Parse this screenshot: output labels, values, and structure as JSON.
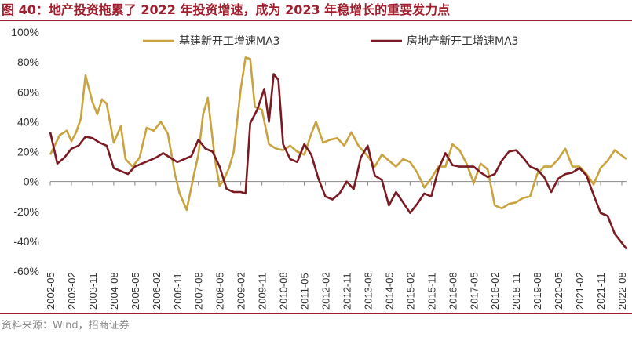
{
  "title": "图 40：地产投资拖累了 2022 年投资增速，成为 2023 年稳增长的重要发力点",
  "source": "资料来源：Wind，招商证券",
  "colors": {
    "title": "#a01e2d",
    "series1": "#c9a33f",
    "series2": "#7a1a22"
  },
  "chart_data": {
    "type": "line",
    "title": "图 40：地产投资拖累了 2022 年投资增速，成为 2023 年稳增长的重要发力点",
    "xlabel": "",
    "ylabel": "",
    "ylim": [
      -0.6,
      1.0
    ],
    "yticks": [
      "100%",
      "80%",
      "60%",
      "40%",
      "20%",
      "0%",
      "-20%",
      "-40%",
      "-60%"
    ],
    "legend_position": "top",
    "categories": [
      "2002-05",
      "2003-02",
      "2003-11",
      "2004-08",
      "2005-05",
      "2006-02",
      "2006-11",
      "2007-08",
      "2008-05",
      "2009-02",
      "2009-11",
      "2010-08",
      "2011-05",
      "2012-02",
      "2012-11",
      "2013-08",
      "2014-05",
      "2015-02",
      "2015-11",
      "2016-08",
      "2017-05",
      "2018-02",
      "2018-11",
      "2019-08",
      "2020-05",
      "2021-02",
      "2021-11",
      "2022-08"
    ],
    "x_start": [
      2002,
      5
    ],
    "x_end": [
      2022,
      10
    ],
    "series": [
      {
        "name": "基建新开工增速MA3",
        "color": "#c9a33f",
        "points": [
          [
            [
              2002,
              5
            ],
            0.18
          ],
          [
            [
              2002,
              9
            ],
            0.31
          ],
          [
            [
              2002,
              12
            ],
            0.34
          ],
          [
            [
              2003,
              2
            ],
            0.27
          ],
          [
            [
              2003,
              4
            ],
            0.33
          ],
          [
            [
              2003,
              6
            ],
            0.42
          ],
          [
            [
              2003,
              8
            ],
            0.71
          ],
          [
            [
              2003,
              11
            ],
            0.53
          ],
          [
            [
              2004,
              1
            ],
            0.45
          ],
          [
            [
              2004,
              3
            ],
            0.55
          ],
          [
            [
              2004,
              5
            ],
            0.52
          ],
          [
            [
              2004,
              8
            ],
            0.26
          ],
          [
            [
              2004,
              11
            ],
            0.37
          ],
          [
            [
              2005,
              1
            ],
            0.15
          ],
          [
            [
              2005,
              4
            ],
            0.1
          ],
          [
            [
              2005,
              7
            ],
            0.16
          ],
          [
            [
              2005,
              10
            ],
            0.36
          ],
          [
            [
              2006,
              1
            ],
            0.34
          ],
          [
            [
              2006,
              4
            ],
            0.4
          ],
          [
            [
              2006,
              7
            ],
            0.32
          ],
          [
            [
              2006,
              10
            ],
            0.05
          ],
          [
            [
              2006,
              12
            ],
            -0.08
          ],
          [
            [
              2007,
              3
            ],
            -0.19
          ],
          [
            [
              2007,
              6
            ],
            0.04
          ],
          [
            [
              2007,
              8
            ],
            0.18
          ],
          [
            [
              2007,
              10
            ],
            0.45
          ],
          [
            [
              2007,
              12
            ],
            0.56
          ],
          [
            [
              2008,
              3
            ],
            0.15
          ],
          [
            [
              2008,
              5
            ],
            -0.03
          ],
          [
            [
              2008,
              7
            ],
            0.02
          ],
          [
            [
              2008,
              9
            ],
            0.09
          ],
          [
            [
              2008,
              11
            ],
            0.2
          ],
          [
            [
              2009,
              2
            ],
            0.62
          ],
          [
            [
              2009,
              4
            ],
            0.83
          ],
          [
            [
              2009,
              6
            ],
            0.82
          ],
          [
            [
              2009,
              8
            ],
            0.5
          ],
          [
            [
              2009,
              11
            ],
            0.48
          ],
          [
            [
              2010,
              2
            ],
            0.25
          ],
          [
            [
              2010,
              5
            ],
            0.22
          ],
          [
            [
              2010,
              8
            ],
            0.21
          ],
          [
            [
              2010,
              11
            ],
            0.24
          ],
          [
            [
              2011,
              2
            ],
            0.2
          ],
          [
            [
              2011,
              5
            ],
            0.18
          ],
          [
            [
              2011,
              8
            ],
            0.32
          ],
          [
            [
              2011,
              10
            ],
            0.4
          ],
          [
            [
              2012,
              1
            ],
            0.26
          ],
          [
            [
              2012,
              4
            ],
            0.28
          ],
          [
            [
              2012,
              7
            ],
            0.29
          ],
          [
            [
              2012,
              10
            ],
            0.24
          ],
          [
            [
              2013,
              1
            ],
            0.33
          ],
          [
            [
              2013,
              4
            ],
            0.24
          ],
          [
            [
              2013,
              8
            ],
            0.17
          ],
          [
            [
              2013,
              11
            ],
            0.1
          ],
          [
            [
              2014,
              2
            ],
            0.18
          ],
          [
            [
              2014,
              5
            ],
            0.14
          ],
          [
            [
              2014,
              8
            ],
            0.1
          ],
          [
            [
              2014,
              11
            ],
            0.15
          ],
          [
            [
              2015,
              2
            ],
            0.13
          ],
          [
            [
              2015,
              5
            ],
            0.06
          ],
          [
            [
              2015,
              8
            ],
            -0.04
          ],
          [
            [
              2015,
              11
            ],
            0.02
          ],
          [
            [
              2016,
              2
            ],
            0.1
          ],
          [
            [
              2016,
              5
            ],
            0.1
          ],
          [
            [
              2016,
              8
            ],
            0.25
          ],
          [
            [
              2016,
              11
            ],
            0.21
          ],
          [
            [
              2017,
              2
            ],
            0.12
          ],
          [
            [
              2017,
              5
            ],
            -0.01
          ],
          [
            [
              2017,
              8
            ],
            0.12
          ],
          [
            [
              2017,
              11
            ],
            0.08
          ],
          [
            [
              2018,
              2
            ],
            -0.16
          ],
          [
            [
              2018,
              5
            ],
            -0.18
          ],
          [
            [
              2018,
              8
            ],
            -0.15
          ],
          [
            [
              2018,
              11
            ],
            -0.14
          ],
          [
            [
              2019,
              2
            ],
            -0.11
          ],
          [
            [
              2019,
              5
            ],
            -0.1
          ],
          [
            [
              2019,
              8
            ],
            0.05
          ],
          [
            [
              2019,
              11
            ],
            0.1
          ],
          [
            [
              2020,
              2
            ],
            0.1
          ],
          [
            [
              2020,
              5
            ],
            0.15
          ],
          [
            [
              2020,
              8
            ],
            0.22
          ],
          [
            [
              2020,
              11
            ],
            0.1
          ],
          [
            [
              2021,
              2
            ],
            0.1
          ],
          [
            [
              2021,
              5
            ],
            0.05
          ],
          [
            [
              2021,
              8
            ],
            -0.02
          ],
          [
            [
              2021,
              11
            ],
            0.09
          ],
          [
            [
              2022,
              2
            ],
            0.14
          ],
          [
            [
              2022,
              5
            ],
            0.21
          ],
          [
            [
              2022,
              10
            ],
            0.15
          ]
        ]
      },
      {
        "name": "房地产新开工增速MA3",
        "color": "#7a1a22",
        "points": [
          [
            [
              2002,
              5
            ],
            0.33
          ],
          [
            [
              2002,
              8
            ],
            0.12
          ],
          [
            [
              2002,
              11
            ],
            0.16
          ],
          [
            [
              2003,
              2
            ],
            0.22
          ],
          [
            [
              2003,
              5
            ],
            0.24
          ],
          [
            [
              2003,
              8
            ],
            0.3
          ],
          [
            [
              2003,
              11
            ],
            0.29
          ],
          [
            [
              2004,
              2
            ],
            0.26
          ],
          [
            [
              2004,
              5
            ],
            0.24
          ],
          [
            [
              2004,
              8
            ],
            0.09
          ],
          [
            [
              2004,
              11
            ],
            0.07
          ],
          [
            [
              2005,
              2
            ],
            0.05
          ],
          [
            [
              2005,
              5
            ],
            0.1
          ],
          [
            [
              2005,
              8
            ],
            0.12
          ],
          [
            [
              2005,
              11
            ],
            0.14
          ],
          [
            [
              2006,
              2
            ],
            0.16
          ],
          [
            [
              2006,
              5
            ],
            0.19
          ],
          [
            [
              2006,
              8
            ],
            0.16
          ],
          [
            [
              2006,
              11
            ],
            0.13
          ],
          [
            [
              2007,
              2
            ],
            0.15
          ],
          [
            [
              2007,
              5
            ],
            0.17
          ],
          [
            [
              2007,
              8
            ],
            0.28
          ],
          [
            [
              2007,
              11
            ],
            0.22
          ],
          [
            [
              2008,
              2
            ],
            0.2
          ],
          [
            [
              2008,
              5
            ],
            0.1
          ],
          [
            [
              2008,
              8
            ],
            -0.05
          ],
          [
            [
              2008,
              11
            ],
            -0.07
          ],
          [
            [
              2009,
              2
            ],
            -0.07
          ],
          [
            [
              2009,
              4
            ],
            -0.08
          ],
          [
            [
              2009,
              6
            ],
            0.39
          ],
          [
            [
              2009,
              9
            ],
            0.48
          ],
          [
            [
              2009,
              12
            ],
            0.62
          ],
          [
            [
              2010,
              2
            ],
            0.4
          ],
          [
            [
              2010,
              4
            ],
            0.72
          ],
          [
            [
              2010,
              6
            ],
            0.68
          ],
          [
            [
              2010,
              8
            ],
            0.25
          ],
          [
            [
              2010,
              11
            ],
            0.15
          ],
          [
            [
              2011,
              2
            ],
            0.13
          ],
          [
            [
              2011,
              5
            ],
            0.25
          ],
          [
            [
              2011,
              8
            ],
            0.18
          ],
          [
            [
              2011,
              11
            ],
            0.02
          ],
          [
            [
              2012,
              2
            ],
            -0.1
          ],
          [
            [
              2012,
              5
            ],
            -0.12
          ],
          [
            [
              2012,
              8
            ],
            -0.08
          ],
          [
            [
              2012,
              11
            ],
            0.0
          ],
          [
            [
              2013,
              2
            ],
            -0.05
          ],
          [
            [
              2013,
              5
            ],
            0.16
          ],
          [
            [
              2013,
              8
            ],
            0.24
          ],
          [
            [
              2013,
              11
            ],
            0.04
          ],
          [
            [
              2014,
              2
            ],
            0.01
          ],
          [
            [
              2014,
              5
            ],
            -0.16
          ],
          [
            [
              2014,
              8
            ],
            -0.07
          ],
          [
            [
              2014,
              11
            ],
            -0.14
          ],
          [
            [
              2015,
              2
            ],
            -0.21
          ],
          [
            [
              2015,
              5
            ],
            -0.15
          ],
          [
            [
              2015,
              8
            ],
            -0.08
          ],
          [
            [
              2015,
              11
            ],
            -0.1
          ],
          [
            [
              2016,
              2
            ],
            0.08
          ],
          [
            [
              2016,
              5
            ],
            0.19
          ],
          [
            [
              2016,
              8
            ],
            0.11
          ],
          [
            [
              2016,
              11
            ],
            0.1
          ],
          [
            [
              2017,
              2
            ],
            0.1
          ],
          [
            [
              2017,
              5
            ],
            0.1
          ],
          [
            [
              2017,
              8
            ],
            0.06
          ],
          [
            [
              2017,
              11
            ],
            0.03
          ],
          [
            [
              2018,
              2
            ],
            0.05
          ],
          [
            [
              2018,
              5
            ],
            0.14
          ],
          [
            [
              2018,
              8
            ],
            0.2
          ],
          [
            [
              2018,
              11
            ],
            0.21
          ],
          [
            [
              2019,
              2
            ],
            0.16
          ],
          [
            [
              2019,
              5
            ],
            0.1
          ],
          [
            [
              2019,
              8
            ],
            0.08
          ],
          [
            [
              2019,
              11
            ],
            0.03
          ],
          [
            [
              2020,
              2
            ],
            -0.07
          ],
          [
            [
              2020,
              5
            ],
            0.02
          ],
          [
            [
              2020,
              8
            ],
            0.05
          ],
          [
            [
              2020,
              11
            ],
            0.06
          ],
          [
            [
              2021,
              2
            ],
            0.09
          ],
          [
            [
              2021,
              5
            ],
            0.04
          ],
          [
            [
              2021,
              8
            ],
            -0.09
          ],
          [
            [
              2021,
              11
            ],
            -0.21
          ],
          [
            [
              2022,
              2
            ],
            -0.23
          ],
          [
            [
              2022,
              5
            ],
            -0.35
          ],
          [
            [
              2022,
              10
            ],
            -0.45
          ]
        ]
      }
    ]
  }
}
